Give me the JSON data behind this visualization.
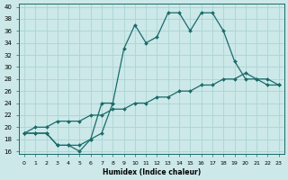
{
  "xlabel": "Humidex (Indice chaleur)",
  "bg_color": "#cce8e8",
  "line_color": "#1a6b6b",
  "grid_color": "#aad4d4",
  "xlim": [
    -0.5,
    23.5
  ],
  "ylim": [
    15.5,
    40.5
  ],
  "xticks": [
    0,
    1,
    2,
    3,
    4,
    5,
    6,
    7,
    8,
    9,
    10,
    11,
    12,
    13,
    14,
    15,
    16,
    17,
    18,
    19,
    20,
    21,
    22,
    23
  ],
  "yticks": [
    16,
    18,
    20,
    22,
    24,
    26,
    28,
    30,
    32,
    34,
    36,
    38,
    40
  ],
  "line1_x": [
    0,
    1,
    2,
    3,
    4,
    5,
    6,
    7,
    8,
    9,
    10,
    11,
    12,
    13,
    14,
    15,
    16,
    17,
    18,
    19,
    20,
    21,
    22,
    23
  ],
  "line1_y": [
    19,
    19,
    19,
    17,
    17,
    17,
    18,
    19,
    24,
    33,
    37,
    34,
    35,
    39,
    39,
    36,
    39,
    39,
    36,
    31,
    28,
    28,
    27,
    27
  ],
  "line2_x": [
    0,
    1,
    2,
    3,
    4,
    5,
    6,
    7,
    8
  ],
  "line2_y": [
    19,
    19,
    19,
    17,
    17,
    16,
    18,
    24,
    24
  ],
  "line3_x": [
    0,
    1,
    2,
    3,
    4,
    5,
    6,
    7,
    8,
    9,
    10,
    11,
    12,
    13,
    14,
    15,
    16,
    17,
    18,
    19,
    20,
    21,
    22,
    23
  ],
  "line3_y": [
    19,
    20,
    20,
    21,
    21,
    21,
    22,
    22,
    23,
    23,
    24,
    24,
    25,
    25,
    26,
    26,
    27,
    27,
    28,
    28,
    29,
    28,
    28,
    27
  ]
}
